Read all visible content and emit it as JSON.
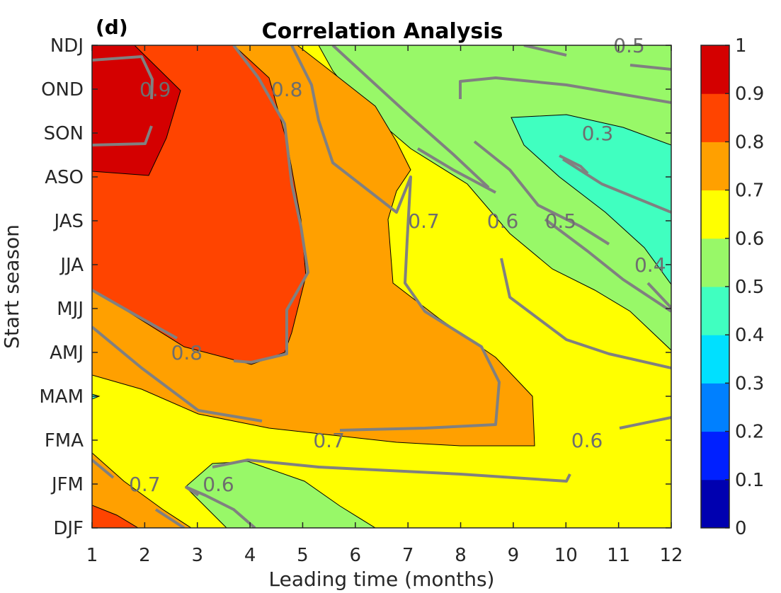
{
  "chart_data": {
    "type": "heatmap",
    "subtype": "filled-contour",
    "panel_label": "(d)",
    "title": "Correlation Analysis",
    "xlabel": "Leading time (months)",
    "ylabel": "Start season",
    "x": [
      1,
      2,
      3,
      4,
      5,
      6,
      7,
      8,
      9,
      10,
      11,
      12
    ],
    "xlim": [
      1,
      12
    ],
    "y": [
      "DJF",
      "JFM",
      "FMA",
      "MAM",
      "AMJ",
      "MJJ",
      "JJA",
      "JAS",
      "ASO",
      "SON",
      "OND",
      "NDJ"
    ],
    "z_rows_approx": [
      [
        0.85,
        0.78,
        0.68,
        0.58,
        0.52,
        0.64,
        0.66,
        0.66,
        0.65,
        0.65,
        0.66,
        0.67
      ],
      [
        0.72,
        0.66,
        0.6,
        0.56,
        0.55,
        0.58,
        0.62,
        0.62,
        0.62,
        0.61,
        0.61,
        0.62
      ],
      [
        0.66,
        0.66,
        0.66,
        0.68,
        0.68,
        0.69,
        0.72,
        0.74,
        0.72,
        0.64,
        0.61,
        0.6
      ],
      [
        0.69,
        0.71,
        0.72,
        0.74,
        0.76,
        0.77,
        0.78,
        0.78,
        0.74,
        0.66,
        0.62,
        0.6
      ],
      [
        0.74,
        0.77,
        0.8,
        0.82,
        0.79,
        0.76,
        0.74,
        0.72,
        0.66,
        0.6,
        0.56,
        0.52
      ],
      [
        0.8,
        0.84,
        0.85,
        0.84,
        0.78,
        0.74,
        0.72,
        0.66,
        0.62,
        0.56,
        0.52,
        0.48
      ],
      [
        0.85,
        0.88,
        0.87,
        0.85,
        0.78,
        0.74,
        0.7,
        0.64,
        0.58,
        0.52,
        0.46,
        0.42
      ],
      [
        0.86,
        0.88,
        0.87,
        0.85,
        0.78,
        0.72,
        0.68,
        0.62,
        0.54,
        0.46,
        0.4,
        0.38
      ],
      [
        0.9,
        0.89,
        0.87,
        0.85,
        0.79,
        0.72,
        0.66,
        0.6,
        0.5,
        0.42,
        0.38,
        0.37
      ],
      [
        0.92,
        0.9,
        0.87,
        0.85,
        0.8,
        0.74,
        0.66,
        0.58,
        0.46,
        0.36,
        0.33,
        0.34
      ],
      [
        0.93,
        0.91,
        0.88,
        0.85,
        0.81,
        0.78,
        0.7,
        0.58,
        0.52,
        0.5,
        0.52,
        0.53
      ],
      [
        0.91,
        0.88,
        0.86,
        0.84,
        0.8,
        0.76,
        0.7,
        0.62,
        0.56,
        0.52,
        0.5,
        0.5
      ]
    ],
    "contour_labels": [
      {
        "text": "0.9",
        "x": 2.2,
        "y": "OND"
      },
      {
        "text": "0.8",
        "x": 4.7,
        "y": "OND"
      },
      {
        "text": "0.8",
        "x": 2.8,
        "y": "AMJ"
      },
      {
        "text": "0.7",
        "x": 2.0,
        "y": "JFM"
      },
      {
        "text": "0.7",
        "x": 5.5,
        "y": "FMA"
      },
      {
        "text": "0.7",
        "x": 7.3,
        "y": "JAS"
      },
      {
        "text": "0.6",
        "x": 3.4,
        "y": "JFM"
      },
      {
        "text": "0.6",
        "x": 8.8,
        "y": "JAS"
      },
      {
        "text": "0.6",
        "x": 10.4,
        "y": "FMA"
      },
      {
        "text": "0.5",
        "x": 9.9,
        "y": "JAS"
      },
      {
        "text": "0.5",
        "x": 11.2,
        "y": "NDJ"
      },
      {
        "text": "0.4",
        "x": 11.6,
        "y": "JJA"
      },
      {
        "text": "0.3",
        "x": 10.6,
        "y": "SON"
      }
    ],
    "colorbar": {
      "ticks": [
        "0",
        "0.1",
        "0.2",
        "0.3",
        "0.4",
        "0.5",
        "0.6",
        "0.7",
        "0.8",
        "0.9",
        "1"
      ],
      "colors": [
        "#0000b0",
        "#0020ff",
        "#0080ff",
        "#00e0ff",
        "#40ffc0",
        "#98f868",
        "#ffff00",
        "#ffa000",
        "#ff4400",
        "#d40000"
      ],
      "range": [
        0,
        1
      ]
    },
    "contour_line_color": "#808080",
    "grid": false
  }
}
